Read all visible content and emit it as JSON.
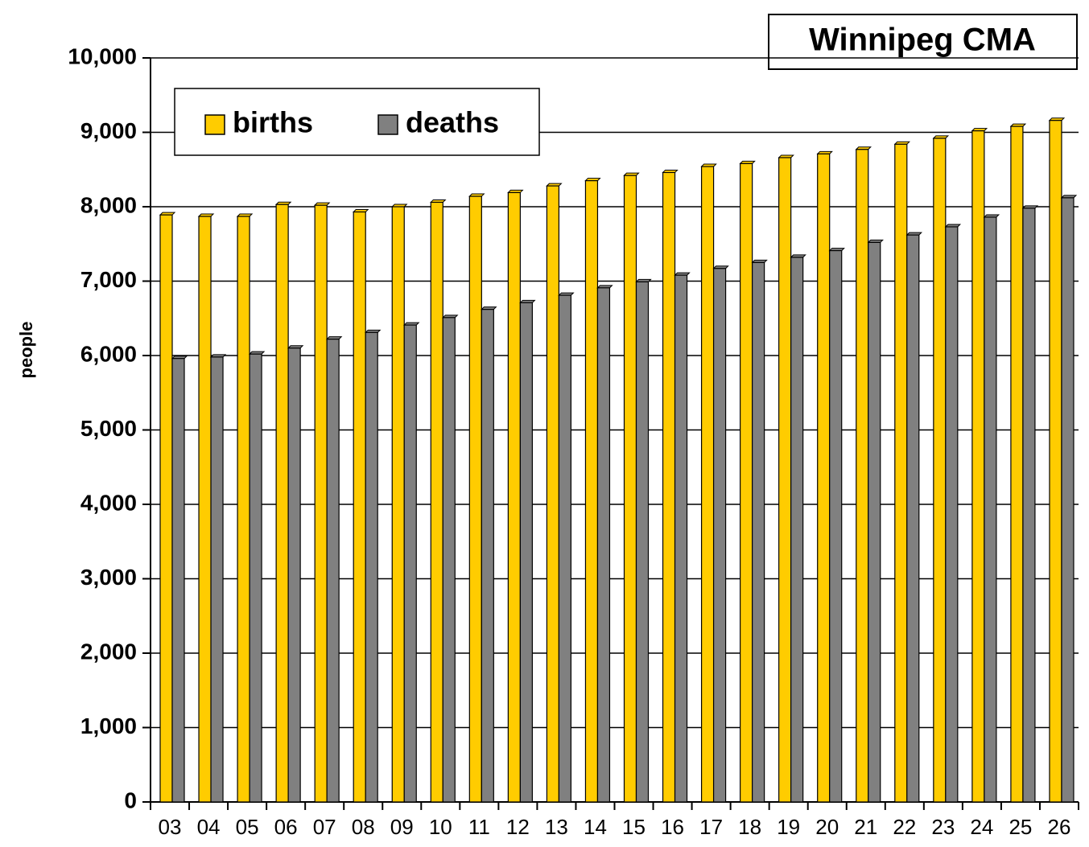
{
  "chart_data": {
    "type": "bar",
    "title": "Winnipeg CMA",
    "y_label": "people",
    "categories": [
      "03",
      "04",
      "05",
      "06",
      "07",
      "08",
      "09",
      "10",
      "11",
      "12",
      "13",
      "14",
      "15",
      "16",
      "17",
      "18",
      "19",
      "20",
      "21",
      "22",
      "23",
      "24",
      "25",
      "26"
    ],
    "series": [
      {
        "name": "births",
        "color": "#ffcc00",
        "values": [
          7890,
          7870,
          7870,
          8030,
          8020,
          7930,
          8000,
          8060,
          8140,
          8190,
          8280,
          8350,
          8420,
          8460,
          8540,
          8580,
          8660,
          8710,
          8770,
          8840,
          8920,
          9020,
          9080,
          9160
        ]
      },
      {
        "name": "deaths",
        "color": "#808080",
        "values": [
          5960,
          5980,
          6020,
          6100,
          6220,
          6310,
          6410,
          6510,
          6620,
          6710,
          6810,
          6910,
          6990,
          7080,
          7170,
          7250,
          7320,
          7410,
          7520,
          7620,
          7730,
          7860,
          7980,
          8120
        ]
      }
    ],
    "ylim": [
      0,
      10000
    ],
    "yticks": [
      0,
      {
        "value": 1000,
        "label": "1,000"
      },
      {
        "value": 2000,
        "label": "2,000"
      },
      {
        "value": 3000,
        "label": "3,000"
      },
      {
        "value": 4000,
        "label": "4,000"
      },
      {
        "value": 5000,
        "label": "5,000"
      },
      {
        "value": 6000,
        "label": "6,000"
      },
      {
        "value": 7000,
        "label": "7,000"
      },
      {
        "value": 8000,
        "label": "8,000"
      },
      {
        "value": 9000,
        "label": "9,000"
      },
      {
        "value": 10000,
        "label": "10,000"
      }
    ],
    "grid": true,
    "legend": "top-left"
  }
}
